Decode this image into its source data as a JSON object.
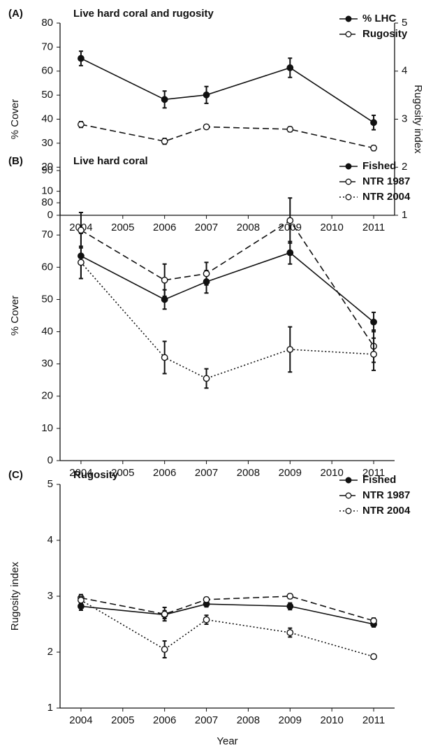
{
  "chart_data": [
    {
      "type": "line",
      "panel_label": "(A)",
      "title": "Live hard coral and rugosity",
      "x": [
        2004,
        2006,
        2007,
        2009,
        2011
      ],
      "xlim": [
        2003.5,
        2011.5
      ],
      "xticks": [
        2004,
        2005,
        2006,
        2007,
        2008,
        2009,
        2010,
        2011
      ],
      "ylim": [
        0,
        80
      ],
      "yticks": [
        0,
        10,
        20,
        30,
        40,
        50,
        60,
        70,
        80
      ],
      "ylabel": "% Cover",
      "y2lim": [
        1,
        5
      ],
      "y2ticks": [
        1,
        2,
        3,
        4,
        5
      ],
      "y2label": "Rugosity index",
      "legend": "top right",
      "series": [
        {
          "name": "% LHC",
          "color": "#111111",
          "dash": "solid",
          "marker": "filled",
          "values": [
            65.3,
            48.2,
            50.1,
            61.4,
            38.6
          ],
          "errors": [
            3,
            3.5,
            3.5,
            4,
            3
          ]
        },
        {
          "name": "Rugosity",
          "color": "#111111",
          "dash": "dashed",
          "marker": "open",
          "axis": "y2",
          "values": [
            2.89,
            2.54,
            2.84,
            2.79,
            2.4
          ],
          "errors": [
            0.06,
            0.06,
            0.04,
            0.05,
            0.05
          ]
        }
      ]
    },
    {
      "type": "line",
      "panel_label": "(B)",
      "title": "Live hard coral",
      "x": [
        2004,
        2006,
        2007,
        2009,
        2011
      ],
      "xlim": [
        2003.5,
        2011.5
      ],
      "xticks": [
        2004,
        2005,
        2006,
        2007,
        2008,
        2009,
        2010,
        2011
      ],
      "ylim": [
        0,
        90
      ],
      "yticks": [
        0,
        10,
        20,
        30,
        40,
        50,
        60,
        70,
        80,
        90
      ],
      "ylabel": "% Cover",
      "legend": "top right",
      "series": [
        {
          "name": "Fished",
          "color": "#111111",
          "dash": "solid",
          "marker": "filled",
          "values": [
            63.5,
            50,
            55.5,
            64.5,
            43
          ],
          "errors": [
            7,
            3,
            3.5,
            3.5,
            3
          ]
        },
        {
          "name": "NTR 1987",
          "color": "#111111",
          "dash": "dashed",
          "marker": "open",
          "values": [
            71.5,
            56,
            58,
            74.5,
            35.5
          ],
          "errors": [
            5.5,
            5,
            3.5,
            7,
            5
          ]
        },
        {
          "name": "NTR 2004",
          "color": "#111111",
          "dash": "dotted",
          "marker": "open",
          "values": [
            61.5,
            32,
            25.5,
            34.5,
            33
          ],
          "errors": [
            5,
            5,
            3,
            7,
            5
          ]
        }
      ]
    },
    {
      "type": "line",
      "panel_label": "(C)",
      "title": "Rugosity",
      "x": [
        2004,
        2006,
        2007,
        2009,
        2011
      ],
      "xlim": [
        2003.5,
        2011.5
      ],
      "xticks": [
        2004,
        2005,
        2006,
        2007,
        2008,
        2009,
        2010,
        2011
      ],
      "ylim": [
        1,
        5
      ],
      "yticks": [
        1,
        2,
        3,
        4,
        5
      ],
      "ylabel": "Rugosity index",
      "xlabel": "Year",
      "legend": "top right",
      "series": [
        {
          "name": "Fished",
          "color": "#111111",
          "dash": "solid",
          "marker": "filled",
          "values": [
            2.82,
            2.67,
            2.86,
            2.82,
            2.5
          ],
          "errors": [
            0.07,
            0.07,
            0.05,
            0.06,
            0.05
          ]
        },
        {
          "name": "NTR 1987",
          "color": "#111111",
          "dash": "dashed",
          "marker": "open",
          "values": [
            2.97,
            2.68,
            2.94,
            3.0,
            2.56
          ],
          "errors": [
            0.06,
            0.12,
            0.04,
            0.04,
            0.05
          ]
        },
        {
          "name": "NTR 2004",
          "color": "#111111",
          "dash": "dotted",
          "marker": "open",
          "values": [
            2.93,
            2.05,
            2.58,
            2.35,
            1.92
          ],
          "errors": [
            0.06,
            0.15,
            0.08,
            0.08,
            0.04
          ]
        }
      ]
    }
  ]
}
